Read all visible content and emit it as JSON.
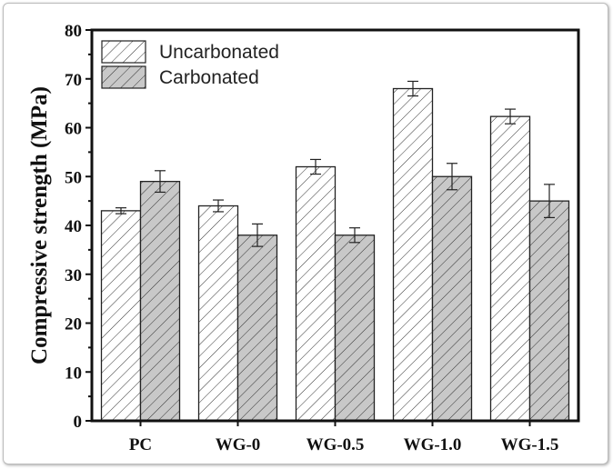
{
  "chart_data": {
    "type": "bar",
    "title": "",
    "xlabel": "",
    "ylabel": "Compressive strength (MPa)",
    "ylim": [
      0,
      80
    ],
    "yticks": [
      0,
      10,
      20,
      30,
      40,
      50,
      60,
      70,
      80
    ],
    "categories": [
      "PC",
      "WG-0",
      "WG-0.5",
      "WG-1.0",
      "WG-1.5"
    ],
    "series": [
      {
        "name": "Uncarbonated",
        "values": [
          43,
          44,
          52,
          68,
          62.3
        ],
        "errors": [
          0.6,
          1.2,
          1.5,
          1.5,
          1.5
        ],
        "fill": "#ffffff",
        "pattern": "hatch"
      },
      {
        "name": "Carbonated",
        "values": [
          49,
          38,
          38,
          50,
          45
        ],
        "errors": [
          2.2,
          2.3,
          1.5,
          2.7,
          3.4
        ],
        "fill": "#c8c8c8",
        "pattern": "hatch"
      }
    ],
    "legend": "top-left",
    "grid": false
  }
}
